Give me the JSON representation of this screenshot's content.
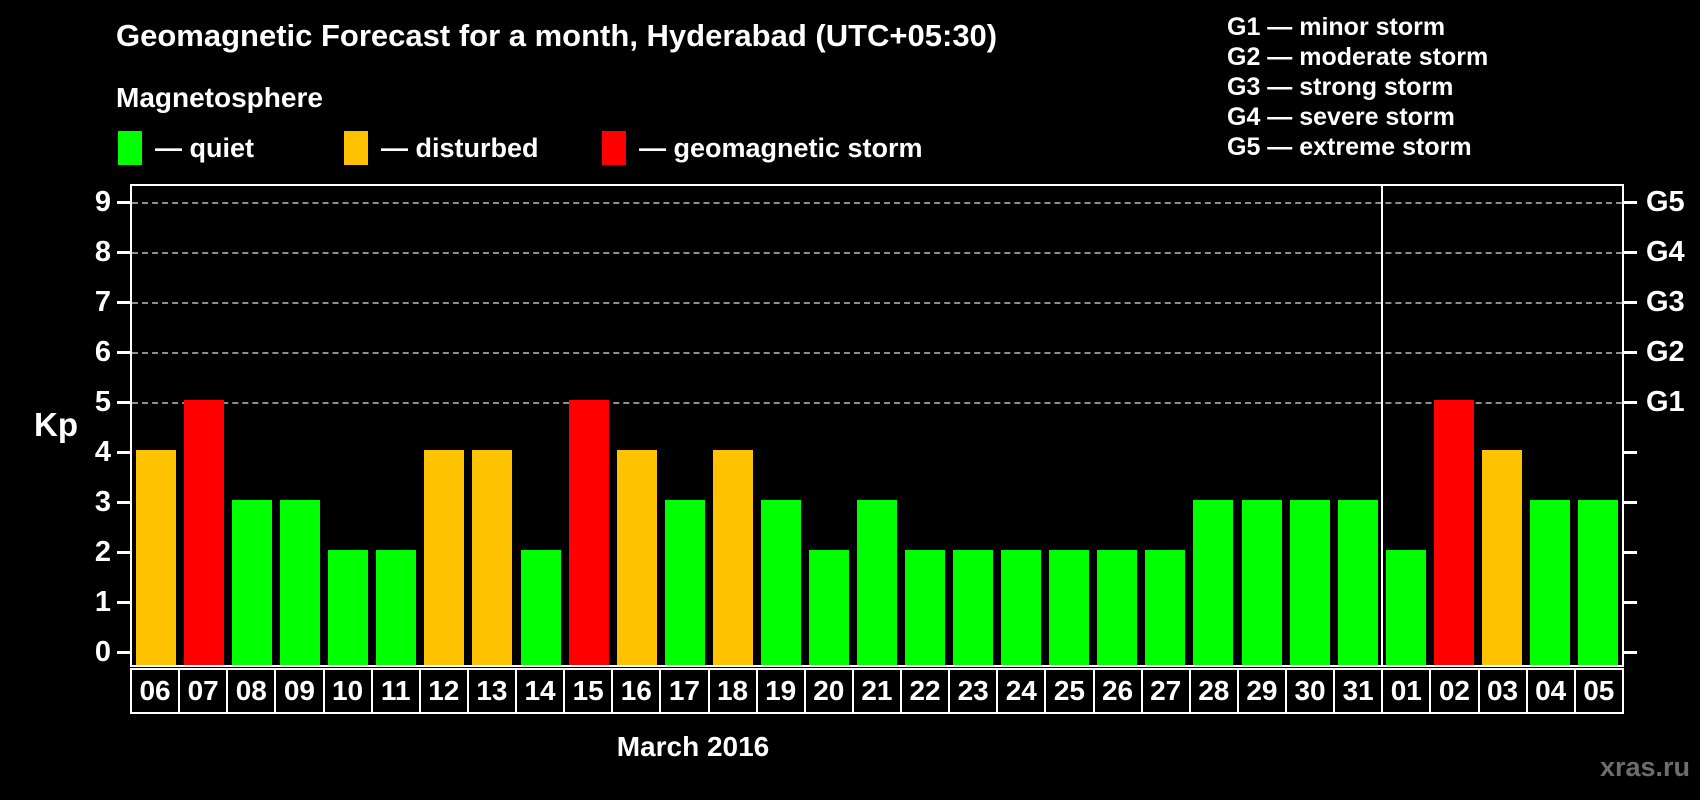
{
  "header": {
    "title": "Geomagnetic Forecast for a month, Hyderabad (UTC+05:30)",
    "subtitle": "Magnetosphere"
  },
  "legend": {
    "items": [
      {
        "name": "quiet",
        "label": "— quiet",
        "color": "#00ff00"
      },
      {
        "name": "disturbed",
        "label": "— disturbed",
        "color": "#ffc200"
      },
      {
        "name": "geomagnetic-storm",
        "label": "— geomagnetic storm",
        "color": "#ff0000"
      }
    ]
  },
  "storm_scale_legend": {
    "lines": [
      "G1 — minor storm",
      "G2 — moderate storm",
      "G3 — strong storm",
      "G4 — severe storm",
      "G5 — extreme storm"
    ]
  },
  "axis": {
    "y_label": "Kp",
    "x_label": "March 2016"
  },
  "watermark": "xras.ru",
  "colors": {
    "quiet": "#00ff00",
    "disturbed": "#ffc200",
    "storm": "#ff0000",
    "grid": "#8e8e8e",
    "axis": "#ffffff",
    "background": "#000000",
    "watermark": "#6d6d6d"
  },
  "chart_data": {
    "type": "bar",
    "title": "Geomagnetic Forecast for a month, Hyderabad (UTC+05:30)",
    "xlabel": "March 2016",
    "ylabel": "Kp",
    "ylim": [
      0,
      9
    ],
    "y_ticks": [
      0,
      1,
      2,
      3,
      4,
      5,
      6,
      7,
      8,
      9
    ],
    "gridlines_at": [
      5,
      6,
      7,
      8,
      9
    ],
    "grid_style": "dashed",
    "legend_position": "top-left",
    "categories": [
      "06",
      "07",
      "08",
      "09",
      "10",
      "11",
      "12",
      "13",
      "14",
      "15",
      "16",
      "17",
      "18",
      "19",
      "20",
      "21",
      "22",
      "23",
      "24",
      "25",
      "26",
      "27",
      "28",
      "29",
      "30",
      "31",
      "01",
      "02",
      "03",
      "04",
      "05"
    ],
    "values": [
      4,
      5,
      3,
      3,
      2,
      2,
      4,
      4,
      2,
      5,
      4,
      3,
      4,
      3,
      2,
      3,
      2,
      2,
      2,
      2,
      2,
      2,
      3,
      3,
      3,
      3,
      2,
      5,
      4,
      3,
      3
    ],
    "color_rules": {
      "storm_min_kp": 5,
      "disturbed_min_kp": 4
    },
    "right_axis": {
      "labels": [
        {
          "text": "G1",
          "kp": 5
        },
        {
          "text": "G2",
          "kp": 6
        },
        {
          "text": "G3",
          "kp": 7
        },
        {
          "text": "G4",
          "kp": 8
        },
        {
          "text": "G5",
          "kp": 9
        }
      ]
    },
    "month_boundary_after_category": "31"
  }
}
